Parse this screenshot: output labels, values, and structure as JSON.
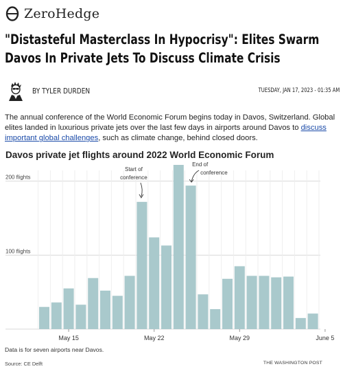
{
  "site": {
    "name": "ZeroHedge",
    "logo_icon": "theta-logo-icon"
  },
  "article": {
    "headline": "\"Distasteful Masterclass In Hypocrisy\": Elites Swarm Davos In Private Jets To Discuss Climate Crisis",
    "author": "BY TYLER DURDEN",
    "date": "TUESDAY, JAN 17, 2023 - 01:35 AM",
    "body_before": "The annual conference of the World Economic Forum begins today in Davos, Switzerland. Global elites landed in luxurious private jets over the last few days in airports around Davos to ",
    "body_link": "discuss important global challenges",
    "body_after": ", such as climate change, behind closed doors."
  },
  "chart_data": {
    "type": "bar",
    "title": "Davos private jet flights around 2022 World Economic Forum",
    "ytick_labels": [
      "100 flights",
      "200 flights"
    ],
    "yticks": [
      100,
      200
    ],
    "ylim": [
      0,
      222
    ],
    "xtick_labels": [
      "May 15",
      "May 22",
      "May 29",
      "June 5"
    ],
    "xtick_index": [
      2,
      9,
      16,
      23
    ],
    "values": [
      30,
      36,
      55,
      33,
      69,
      52,
      45,
      72,
      172,
      124,
      113,
      222,
      194,
      47,
      27,
      68,
      85,
      72,
      72,
      70,
      71,
      15,
      21
    ],
    "bar_color": "#a9c9cc",
    "grid": true,
    "annotations": [
      {
        "text_line1": "Start of",
        "text_line2": "conference",
        "target_index": 8
      },
      {
        "text_line1": "End of",
        "text_line2": "conference",
        "target_index": 12
      }
    ],
    "note": "Data is for seven airports near Davos.",
    "source": "Source: CE Delft",
    "credit": "THE WASHINGTON POST"
  }
}
